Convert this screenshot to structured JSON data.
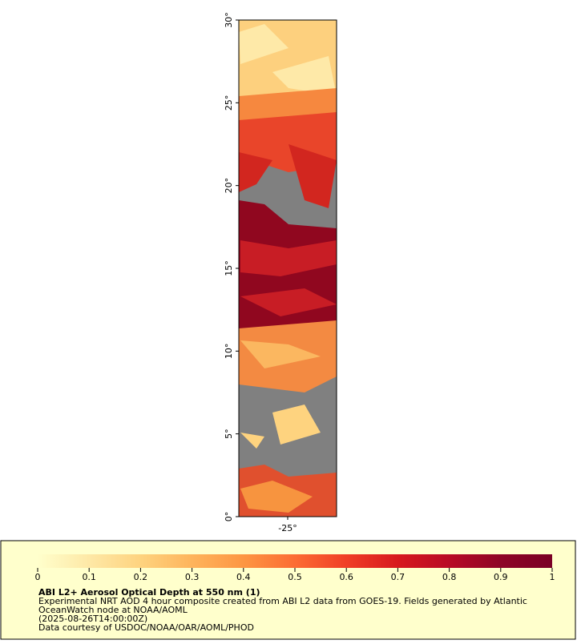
{
  "map": {
    "xlim": [
      -28,
      -22
    ],
    "ylim": [
      0,
      30
    ],
    "xticks": [
      {
        "value": -25,
        "label": "-25°"
      }
    ],
    "yticks": [
      {
        "value": 0,
        "label": "0°"
      },
      {
        "value": 5,
        "label": "5°"
      },
      {
        "value": 10,
        "label": "10°"
      },
      {
        "value": 15,
        "label": "15°"
      },
      {
        "value": 20,
        "label": "20°"
      },
      {
        "value": 25,
        "label": "25°"
      },
      {
        "value": 30,
        "label": "30°"
      }
    ]
  },
  "legend": {
    "title": "ABI L2+ Aerosol Optical Depth at 550 nm (1)",
    "lines": [
      "Experimental NRT AOD 4 hour composite created from ABI L2 data from GOES-19. Fields generated by Atlantic",
      "OceanWatch node at NOAA/AOML",
      "(2025-08-26T14:00:00Z)",
      "Data courtesy of USDOC/NOAA/OAR/AOML/PHOD"
    ],
    "colorbar": {
      "lim": [
        0,
        1
      ],
      "ticks": [
        0,
        0.1,
        0.2,
        0.3,
        0.4,
        0.5,
        0.6,
        0.7,
        0.8,
        0.9,
        1
      ],
      "colors": [
        "#ffffcc",
        "#fee8a6",
        "#fed37f",
        "#feb45c",
        "#fd9643",
        "#fc6c33",
        "#f03e26",
        "#d7191e",
        "#b80b25",
        "#8e0527",
        "#7a0025"
      ]
    }
  }
}
